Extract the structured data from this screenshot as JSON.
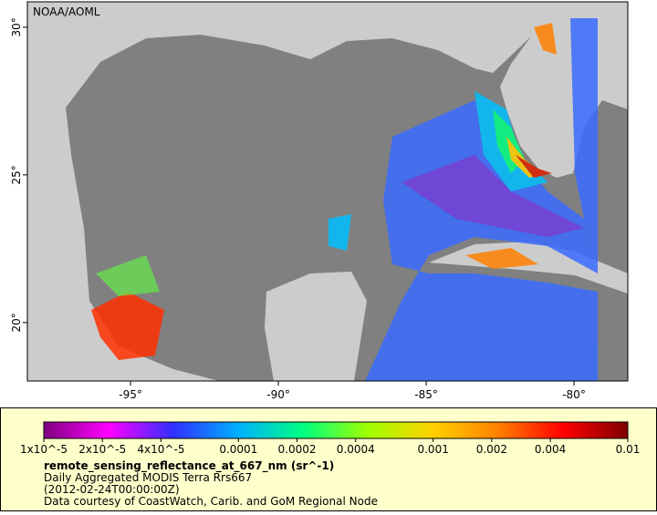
{
  "map": {
    "credit": "NOAA/AOML",
    "lon_range": [
      -98.49,
      -78.18
    ],
    "lat_range": [
      18.02,
      30.86
    ],
    "lon_ticks": [
      {
        "value": -95,
        "label": "-95°"
      },
      {
        "value": -90,
        "label": "-90°"
      },
      {
        "value": -85,
        "label": "-85°"
      },
      {
        "value": -80,
        "label": "-80°"
      }
    ],
    "lat_ticks": [
      {
        "value": 20,
        "label": "20°"
      },
      {
        "value": 25,
        "label": "25°"
      },
      {
        "value": 30,
        "label": "30°"
      }
    ]
  },
  "legend": {
    "range": [
      1e-05,
      0.01
    ],
    "log_scale": true,
    "colormap": [
      "#800080",
      "#ff00ff",
      "#3030ff",
      "#00b0ff",
      "#00ff80",
      "#a0ff00",
      "#ffd000",
      "#ff8000",
      "#ff0000",
      "#800000"
    ],
    "ticks": [
      {
        "value": 1e-05,
        "label": "1x10^-5"
      },
      {
        "value": 2e-05,
        "label": "2x10^-5"
      },
      {
        "value": 4e-05,
        "label": "4x10^-5"
      },
      0.0001,
      0.0002,
      0.0004,
      0.001,
      0.002,
      0.004,
      0.01
    ],
    "variable": "remote_sensing_reflectance_at_667_nm (sr^-1)",
    "dataset": "Daily Aggregated MODIS Terra Rrs667",
    "time": "(2012-02-24T00:00:00Z)",
    "source": "Data courtesy of CoastWatch, Carib. and GoM Regional Node"
  }
}
